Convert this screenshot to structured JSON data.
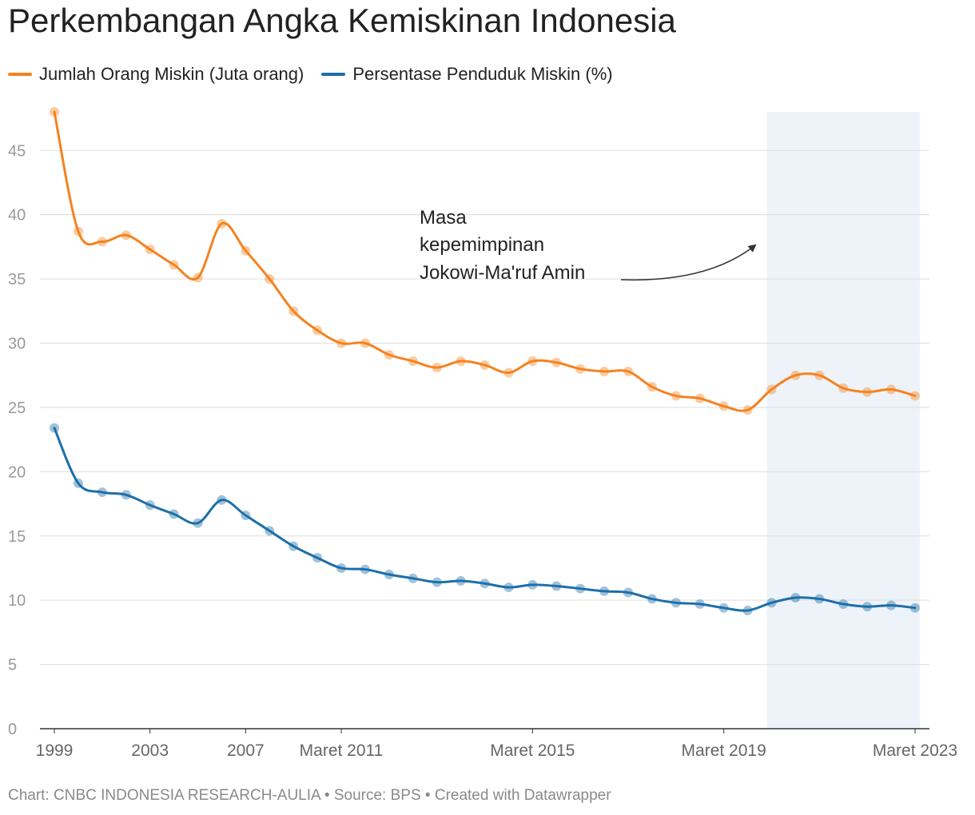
{
  "title": "Perkembangan Angka Kemiskinan Indonesia",
  "legend": [
    {
      "label": "Jumlah Orang Miskin (Juta orang)",
      "color": "#f5821f"
    },
    {
      "label": "Persentase Penduduk Miskin (%)",
      "color": "#1d6fa9"
    }
  ],
  "annotation": {
    "lines": [
      "Masa",
      "kepemimpinan",
      "Jokowi-Ma'ruf Amin"
    ]
  },
  "footer": "Chart: CNBC INDONESIA RESEARCH-AULIA • Source: BPS • Created with Datawrapper",
  "chart_data": {
    "type": "line",
    "title": "Perkembangan Angka Kemiskinan Indonesia",
    "xlabel": "",
    "ylabel": "",
    "ylim": [
      0,
      48
    ],
    "yticks": [
      0,
      5,
      10,
      15,
      20,
      25,
      30,
      35,
      40,
      45
    ],
    "xtick_labels": [
      {
        "index": 0,
        "label": "1999"
      },
      {
        "index": 4,
        "label": "2003"
      },
      {
        "index": 8,
        "label": "2007"
      },
      {
        "index": 12,
        "label": "Maret 2011"
      },
      {
        "index": 20,
        "label": "Maret 2015"
      },
      {
        "index": 28,
        "label": "Maret 2019"
      },
      {
        "index": 36,
        "label": "Maret 2023"
      }
    ],
    "highlight_range": [
      29.8,
      36.2
    ],
    "grid": true,
    "legend_position": "top-left",
    "series": [
      {
        "name": "Jumlah Orang Miskin (Juta orang)",
        "color": "#f5821f",
        "values": [
          48.0,
          38.7,
          37.9,
          38.4,
          37.3,
          36.1,
          35.1,
          39.3,
          37.2,
          35.0,
          32.5,
          31.0,
          30.0,
          30.0,
          29.1,
          28.6,
          28.1,
          28.6,
          28.3,
          27.7,
          28.6,
          28.5,
          28.0,
          27.8,
          27.8,
          26.6,
          25.9,
          25.7,
          25.1,
          24.8,
          26.4,
          27.5,
          27.5,
          26.5,
          26.2,
          26.4,
          25.9
        ]
      },
      {
        "name": "Persentase Penduduk Miskin (%)",
        "color": "#1d6fa9",
        "values": [
          23.4,
          19.1,
          18.4,
          18.2,
          17.4,
          16.7,
          16.0,
          17.8,
          16.6,
          15.4,
          14.2,
          13.3,
          12.5,
          12.4,
          12.0,
          11.7,
          11.4,
          11.5,
          11.3,
          11.0,
          11.2,
          11.1,
          10.9,
          10.7,
          10.6,
          10.1,
          9.8,
          9.7,
          9.4,
          9.2,
          9.8,
          10.2,
          10.1,
          9.7,
          9.5,
          9.6,
          9.4
        ]
      }
    ]
  }
}
